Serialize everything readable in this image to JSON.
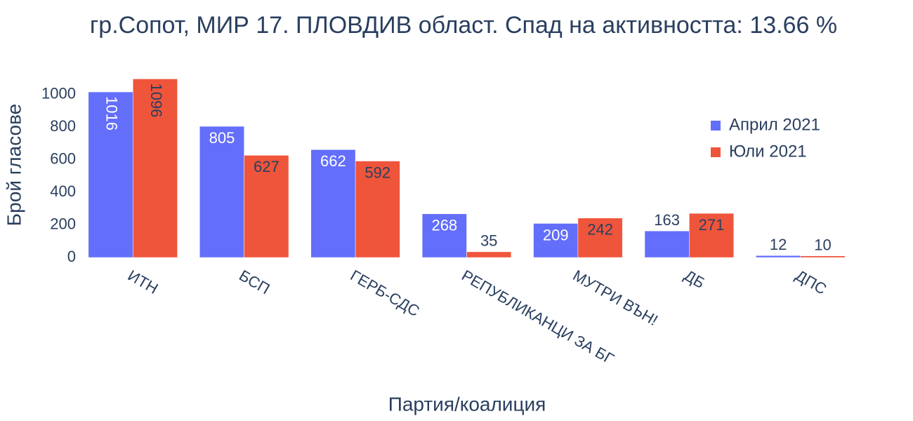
{
  "chart_data": {
    "type": "bar",
    "title": "гр.Сопот, МИР 17. ПЛОВДИВ област. Спад на активността: 13.66 %",
    "x_label": "Партия/коалиция",
    "y_label": "Брой гласове",
    "categories": [
      "ИТН",
      "БСП",
      "ГЕРБ-СДС",
      "РЕПУБЛИКАНЦИ ЗА БГ",
      "МУТРИ ВЪН!",
      "ДБ",
      "ДПС"
    ],
    "series": [
      {
        "name": "Април 2021",
        "color": "#636efa",
        "values": [
          1016,
          805,
          662,
          268,
          209,
          163,
          12
        ]
      },
      {
        "name": "Юли 2021",
        "color": "#ef553b",
        "values": [
          1096,
          627,
          592,
          35,
          242,
          271,
          10
        ]
      }
    ],
    "ylim": [
      0,
      1154
    ],
    "yticks": [
      0,
      200,
      400,
      600,
      800,
      1000
    ],
    "grid": false,
    "legend": "top-right"
  }
}
